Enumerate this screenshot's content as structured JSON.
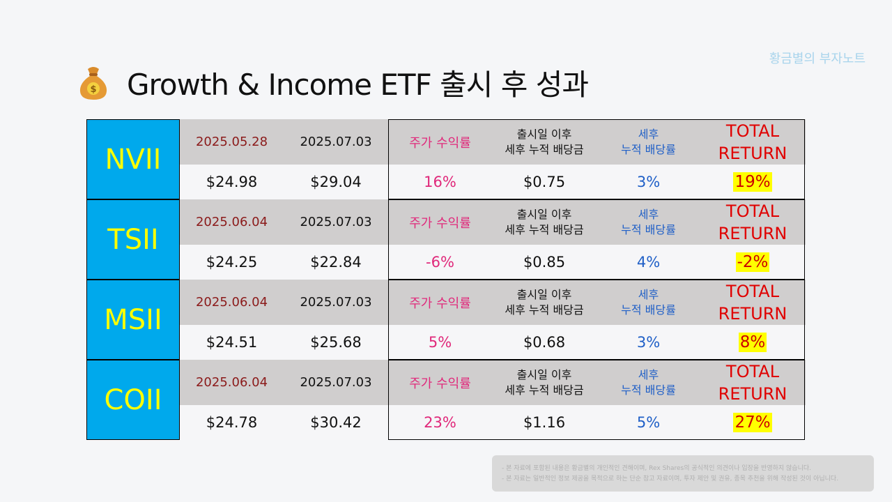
{
  "watermark": "황금별의 부자노트",
  "title": "Growth & Income ETF 출시 후 성과",
  "header_labels": {
    "price_return": "주가 수익률",
    "div_line1": "출시일 이후",
    "div_line2": "세후 누적 배당금",
    "yield_line1": "세후",
    "yield_line2": "누적 배당률",
    "total_line1": "TOTAL",
    "total_line2": "RETURN"
  },
  "rows": [
    {
      "ticker": "NVII",
      "launch_date": "2025.05.28",
      "current_date": "2025.07.03",
      "launch_price": "$24.98",
      "current_price": "$29.04",
      "price_return": "16%",
      "dividends": "$0.75",
      "div_yield": "3%",
      "total_return": "19%"
    },
    {
      "ticker": "TSII",
      "launch_date": "2025.06.04",
      "current_date": "2025.07.03",
      "launch_price": "$24.25",
      "current_price": "$22.84",
      "price_return": "-6%",
      "dividends": "$0.85",
      "div_yield": "4%",
      "total_return": "-2%"
    },
    {
      "ticker": "MSII",
      "launch_date": "2025.06.04",
      "current_date": "2025.07.03",
      "launch_price": "$24.51",
      "current_price": "$25.68",
      "price_return": "5%",
      "dividends": "$0.68",
      "div_yield": "3%",
      "total_return": "8%"
    },
    {
      "ticker": "COII",
      "launch_date": "2025.06.04",
      "current_date": "2025.07.03",
      "launch_price": "$24.78",
      "current_price": "$30.42",
      "price_return": "23%",
      "dividends": "$1.16",
      "div_yield": "5%",
      "total_return": "27%"
    }
  ],
  "disclaimer": [
    "- 본 자료에 포함된 내용은 황금별의 개인적인 견해이며, Rex Shares의 공식적인 의견이나 입장을 반영하지 않습니다.",
    "- 본 자료는 일반적인 정보 제공을 목적으로 하는 단순 참고 자료이며, 투자 제안 및 권유, 종목 추천을 위해 작성된 것이 아닙니다."
  ],
  "colors": {
    "ticker_bg": "#00a9ec",
    "ticker_text": "#ffff00",
    "highlight": "#ffff00",
    "header_bg": "#d0cece"
  },
  "icons": {
    "title_icon": "money-bag-icon"
  }
}
